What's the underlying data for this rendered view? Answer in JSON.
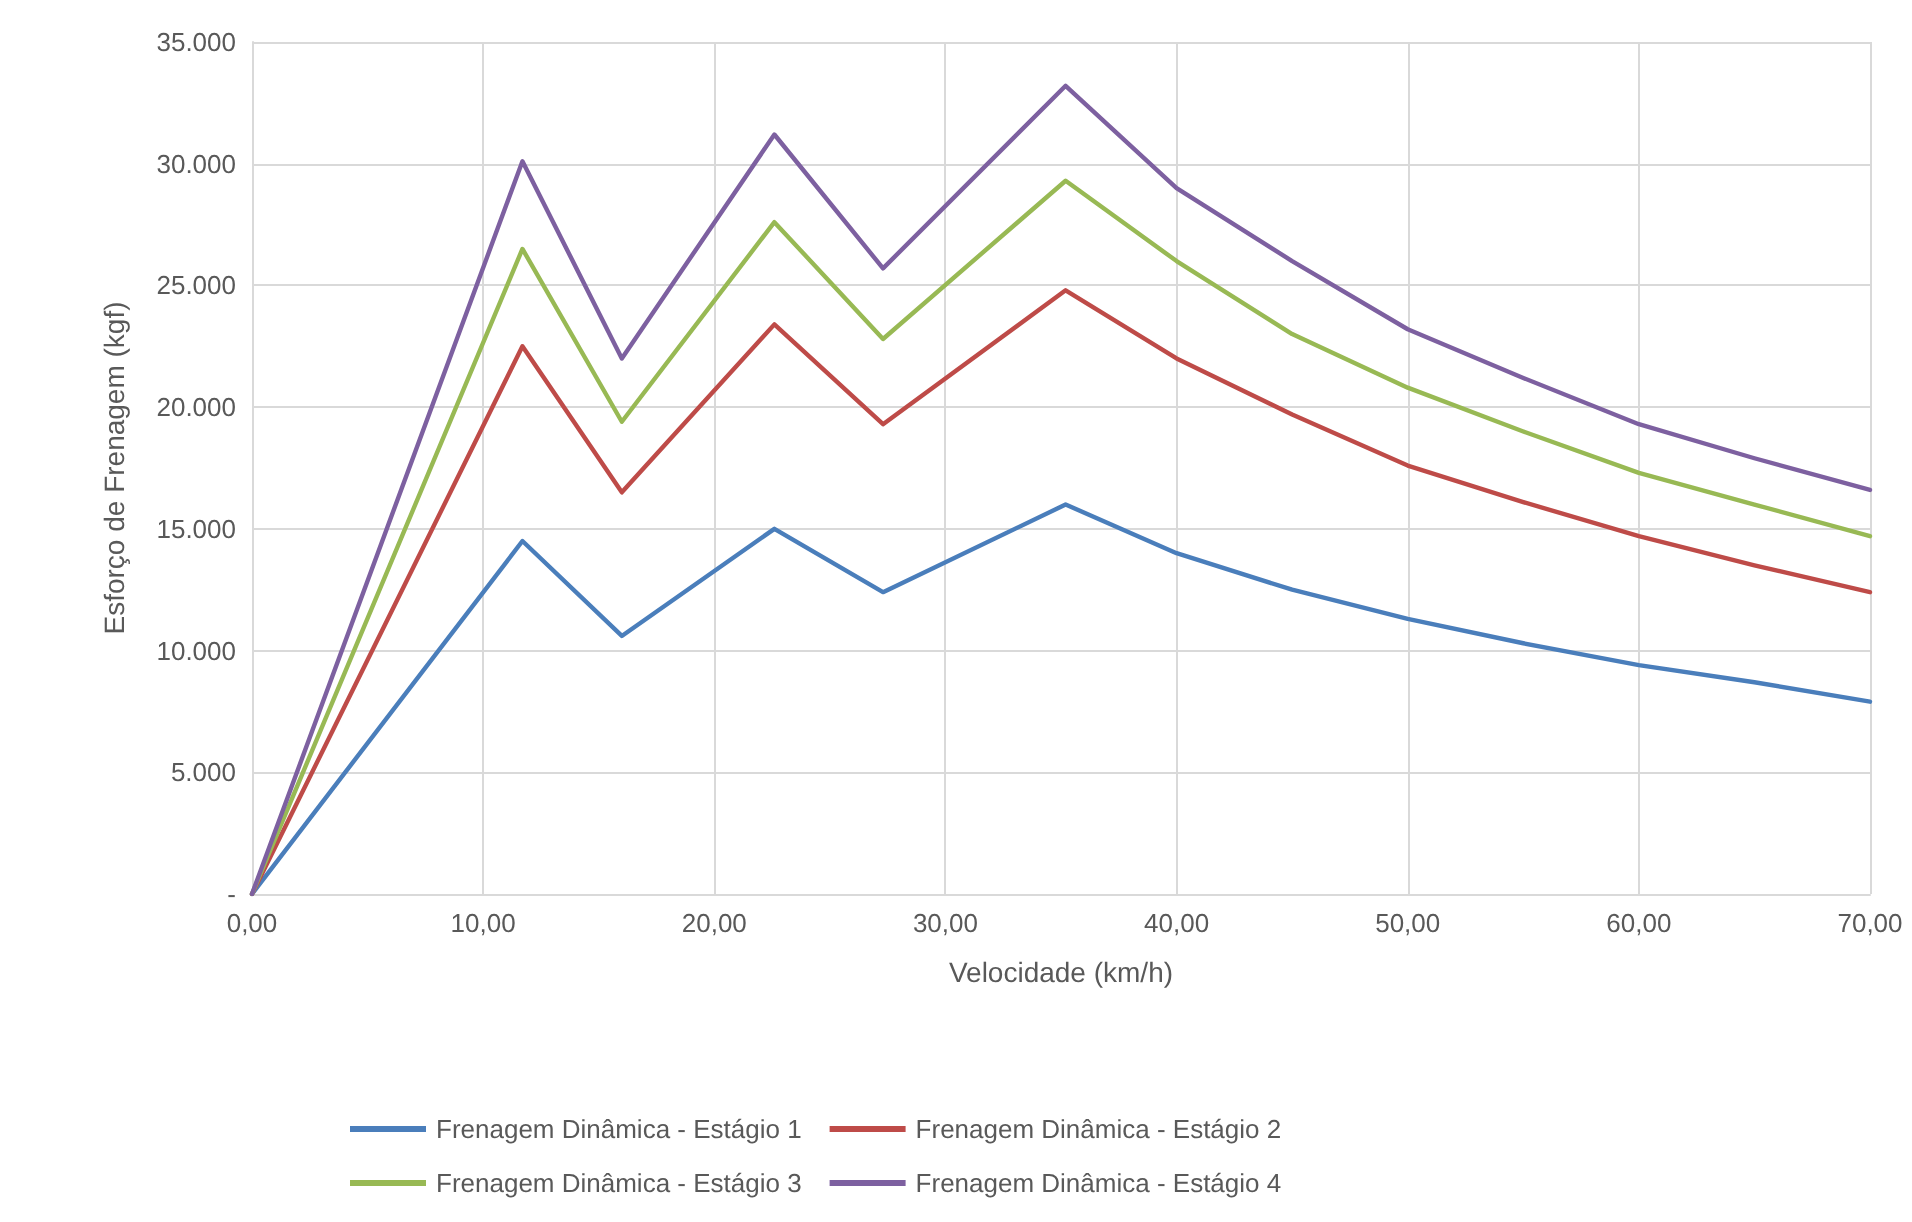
{
  "chart_data": {
    "type": "line",
    "xlabel": "Velocidade (km/h)",
    "ylabel": "Esforço de Frenagem (kgf)",
    "x": [
      0,
      11.7,
      16,
      22.6,
      27.3,
      35.2,
      40,
      45,
      50,
      55,
      60,
      65,
      70
    ],
    "series": [
      {
        "name": "Frenagem Dinâmica - Estágio 1",
        "color": "#4a7ebb",
        "values": [
          0,
          14500,
          10600,
          15000,
          12400,
          16000,
          14000,
          12500,
          11300,
          10300,
          9400,
          8700,
          7900
        ]
      },
      {
        "name": "Frenagem Dinâmica - Estágio 2",
        "color": "#be4b48",
        "values": [
          0,
          22500,
          16500,
          23400,
          19300,
          24800,
          22000,
          19700,
          17600,
          16100,
          14700,
          13500,
          12400
        ]
      },
      {
        "name": "Frenagem Dinâmica - Estágio 3",
        "color": "#98b954",
        "values": [
          0,
          26500,
          19400,
          27600,
          22800,
          29300,
          26000,
          23000,
          20800,
          19000,
          17300,
          16000,
          14700
        ]
      },
      {
        "name": "Frenagem Dinâmica - Estágio 4",
        "color": "#7d60a0",
        "values": [
          0,
          30100,
          22000,
          31200,
          25700,
          33200,
          29000,
          26000,
          23200,
          21200,
          19300,
          17900,
          16600
        ]
      }
    ],
    "xlim": [
      0,
      70
    ],
    "xticks": [
      {
        "value": 0,
        "label": "0,00"
      },
      {
        "value": 10,
        "label": "10,00"
      },
      {
        "value": 20,
        "label": "20,00"
      },
      {
        "value": 30,
        "label": "30,00"
      },
      {
        "value": 40,
        "label": "40,00"
      },
      {
        "value": 50,
        "label": "50,00"
      },
      {
        "value": 60,
        "label": "60,00"
      },
      {
        "value": 70,
        "label": "70,00"
      }
    ],
    "ylim": [
      0,
      35000
    ],
    "yticks": [
      {
        "value": 0,
        "label": "-"
      },
      {
        "value": 5000,
        "label": "5.000"
      },
      {
        "value": 10000,
        "label": "10.000"
      },
      {
        "value": 15000,
        "label": "15.000"
      },
      {
        "value": 20000,
        "label": "20.000"
      },
      {
        "value": 25000,
        "label": "25.000"
      },
      {
        "value": 30000,
        "label": "30.000"
      },
      {
        "value": 35000,
        "label": "35.000"
      }
    ],
    "grid": true,
    "legend": "bottom",
    "marker": "none",
    "line_style": "solid"
  }
}
